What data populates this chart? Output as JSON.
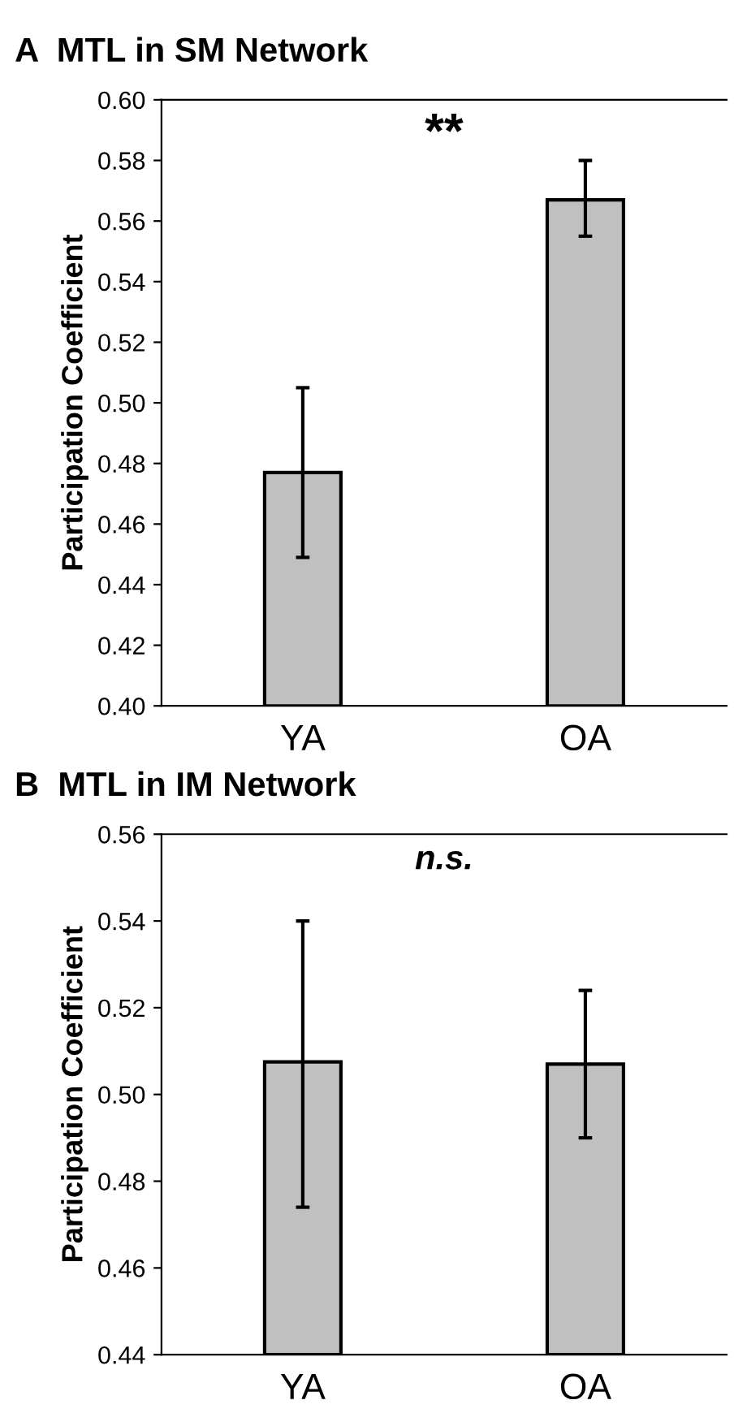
{
  "chart_data": [
    {
      "type": "bar",
      "title": "A  MTL in SM Network",
      "ylabel": "Participation Coefficient",
      "categories": [
        "YA",
        "OA"
      ],
      "values": [
        0.477,
        0.567
      ],
      "errors": [
        [
          0.449,
          0.505
        ],
        [
          0.555,
          0.58
        ]
      ],
      "color": "#c0c0c0",
      "ylim": [
        0.4,
        0.6
      ],
      "yticks": [
        {
          "value": 0.4,
          "label": "0.40"
        },
        {
          "value": 0.42,
          "label": "0.42"
        },
        {
          "value": 0.44,
          "label": "0.44"
        },
        {
          "value": 0.46,
          "label": "0.46"
        },
        {
          "value": 0.48,
          "label": "0.48"
        },
        {
          "value": 0.5,
          "label": "0.50"
        },
        {
          "value": 0.52,
          "label": "0.52"
        },
        {
          "value": 0.54,
          "label": "0.54"
        },
        {
          "value": 0.56,
          "label": "0.56"
        },
        {
          "value": 0.58,
          "label": "0.58"
        },
        {
          "value": 0.6,
          "label": "0.60"
        }
      ],
      "annotations": [
        "**"
      ],
      "grid": false,
      "legend": false
    },
    {
      "type": "bar",
      "title": "B  MTL in IM Network",
      "ylabel": "Participation Coefficient",
      "categories": [
        "YA",
        "OA"
      ],
      "values": [
        0.5075,
        0.507
      ],
      "errors": [
        [
          0.474,
          0.54
        ],
        [
          0.49,
          0.524
        ]
      ],
      "color": "#c0c0c0",
      "ylim": [
        0.44,
        0.56
      ],
      "yticks": [
        {
          "value": 0.44,
          "label": "0.44"
        },
        {
          "value": 0.46,
          "label": "0.46"
        },
        {
          "value": 0.48,
          "label": "0.48"
        },
        {
          "value": 0.5,
          "label": "0.50"
        },
        {
          "value": 0.52,
          "label": "0.52"
        },
        {
          "value": 0.54,
          "label": "0.54"
        },
        {
          "value": 0.56,
          "label": "0.56"
        }
      ],
      "annotations": [
        "n.s."
      ],
      "grid": false,
      "legend": false
    }
  ]
}
